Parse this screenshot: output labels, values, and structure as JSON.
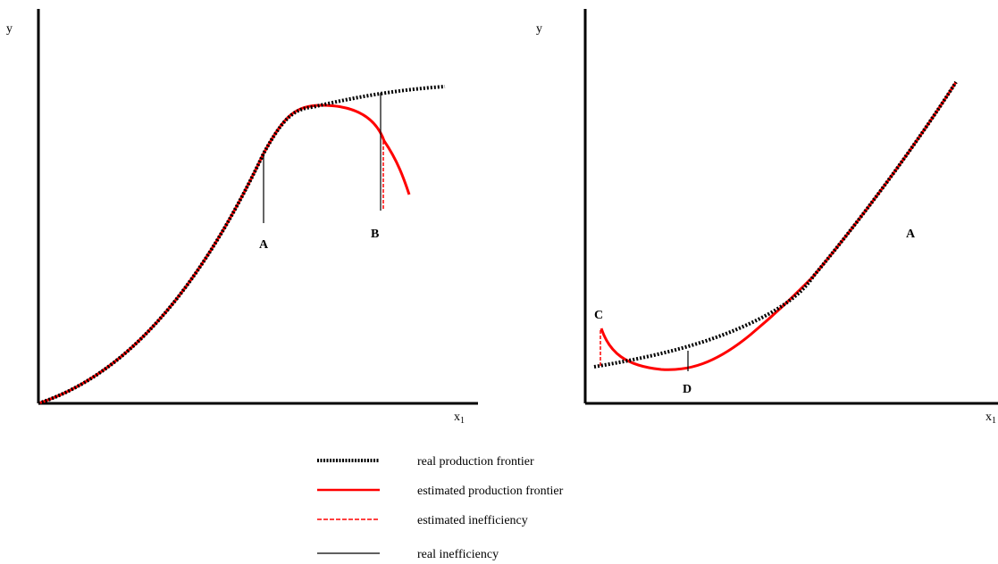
{
  "colors": {
    "real_frontier": "#000000",
    "estimated_frontier": "#ff0000",
    "estimated_inefficiency": "#ff0000",
    "real_inefficiency": "#000000",
    "axes": "#000000"
  },
  "left_panel": {
    "y_axis_label": "y",
    "x_axis_label_base": "x",
    "x_axis_label_sub": "1",
    "points": [
      "A",
      "B"
    ]
  },
  "right_panel": {
    "y_axis_label": "y",
    "x_axis_label_base": "x",
    "x_axis_label_sub": "1",
    "points": [
      "C",
      "D",
      "A"
    ]
  },
  "legend": {
    "items": [
      {
        "label": "real production frontier",
        "style": "dotted",
        "color": "#000000"
      },
      {
        "label": "estimated production frontier",
        "style": "solid-thick",
        "color": "#ff0000"
      },
      {
        "label": "estimated inefficiency",
        "style": "dashed",
        "color": "#ff0000"
      },
      {
        "label": "real inefficiency",
        "style": "solid-thin",
        "color": "#000000"
      }
    ]
  }
}
